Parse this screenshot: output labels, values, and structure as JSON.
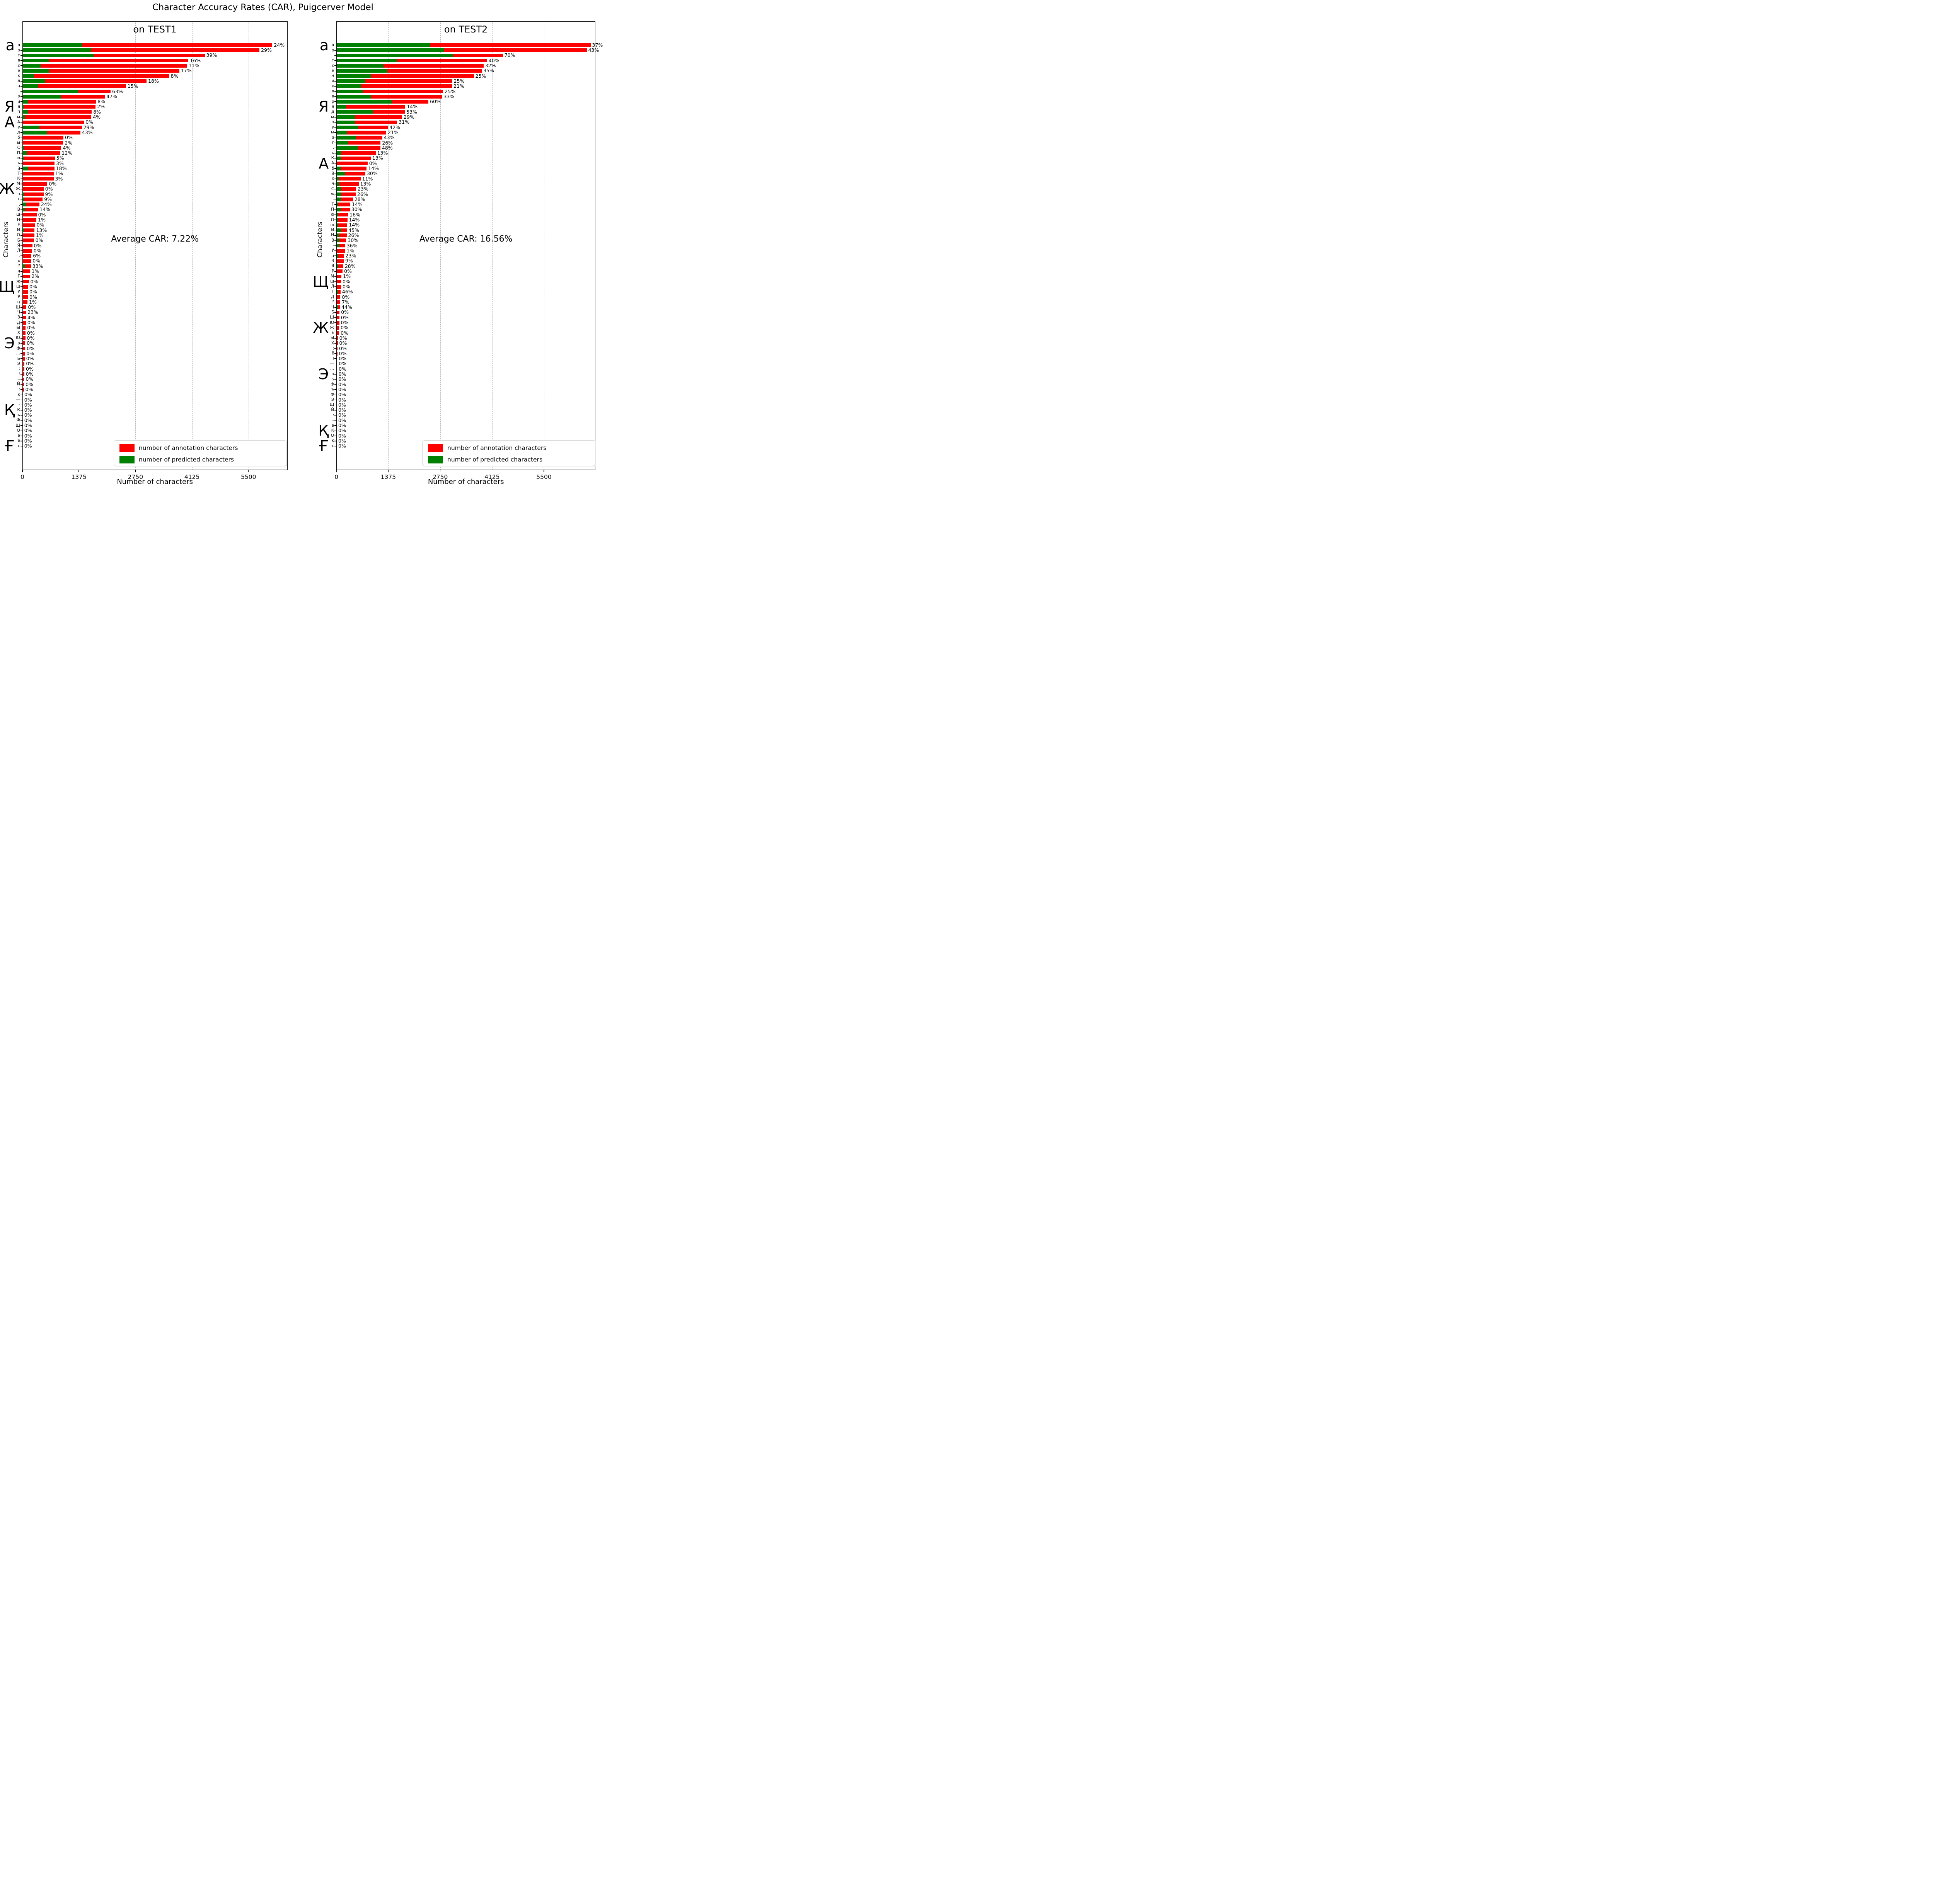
{
  "chart_data": {
    "type": "bar",
    "orientation": "horizontal",
    "title": "Character Accuracy Rates (CAR), Puigcerver Model",
    "legend": {
      "annotation_label": "number of annotation characters",
      "predicted_label": "number of predicted characters",
      "position": "lower right"
    },
    "colors": {
      "annotation": "#ff0000",
      "predicted": "#008000",
      "gridline": "#b5b5b5"
    },
    "note": "rows are [character, annotation_count, car_percent]; predicted_count = annotation_count * car_percent / 100",
    "charts": [
      {
        "subtitle": "on TEST1",
        "avg_text": "Average CAR: 7.22%",
        "xlabel": "Number of characters",
        "ylabel": "Characters",
        "xticks": [
          0,
          1375,
          2750,
          4125,
          5500
        ],
        "xlim": [
          0,
          6450
        ],
        "grid": true,
        "rows": [
          [
            "а",
            6079,
            24
          ],
          [
            "о",
            5766,
            29
          ],
          [
            "т",
            4436,
            39
          ],
          [
            "в",
            4038,
            16
          ],
          [
            "с",
            4004,
            11
          ],
          [
            "е",
            3816,
            17
          ],
          [
            "к",
            3570,
            8
          ],
          [
            "л",
            3020,
            18
          ],
          [
            "н",
            2518,
            15
          ],
          [
            " ",
            2145,
            63
          ],
          [
            "р",
            2007,
            47
          ],
          [
            "и",
            1790,
            8
          ],
          [
            "я",
            1780,
            2
          ],
          [
            "п",
            1686,
            8
          ],
          [
            "м",
            1677,
            4
          ],
          [
            "А",
            1498,
            0
          ],
          [
            "у",
            1445,
            29
          ],
          [
            "д",
            1411,
            43
          ],
          [
            "б",
            999,
            0
          ],
          [
            "ы",
            991,
            2
          ],
          [
            "С",
            946,
            4
          ],
          [
            "П",
            917,
            12
          ],
          [
            "ю",
            789,
            5
          ],
          [
            "ь",
            782,
            3
          ],
          [
            "й",
            779,
            18
          ],
          [
            "Т",
            762,
            1
          ],
          [
            "К",
            758,
            3
          ],
          [
            "М",
            606,
            0
          ],
          [
            "Ж",
            516,
            0
          ],
          [
            "з",
            514,
            9
          ],
          [
            "г",
            492,
            9
          ],
          [
            ",",
            415,
            24
          ],
          [
            "В",
            381,
            14
          ],
          [
            "ш",
            345,
            0
          ],
          [
            "Н",
            340,
            1
          ],
          [
            "Е",
            306,
            0
          ],
          [
            "И",
            297,
            13
          ],
          [
            "О",
            292,
            1
          ],
          [
            "Б",
            280,
            0
          ],
          [
            "Я",
            241,
            0
          ],
          [
            "Л",
            234,
            0
          ],
          [
            ".",
            220,
            6
          ],
          [
            "х",
            210,
            0
          ],
          [
            "?",
            205,
            33
          ],
          [
            "ч",
            186,
            1
          ],
          [
            "Г",
            183,
            2
          ],
          [
            "ж",
            157,
            0
          ],
          [
            "щ",
            133,
            0
          ],
          [
            "У",
            133,
            0
          ],
          [
            "Р",
            133,
            0
          ],
          [
            "ц",
            123,
            1
          ],
          [
            "Ш",
            99,
            0
          ],
          [
            "Ч",
            87,
            23
          ],
          [
            "З",
            84,
            4
          ],
          [
            "Д",
            84,
            0
          ],
          [
            "Ы",
            80,
            0
          ],
          [
            "Х",
            75,
            0
          ],
          [
            "Ю",
            72,
            0
          ],
          [
            "э",
            68,
            0
          ],
          [
            "ф",
            68,
            0
          ],
          [
            "…",
            60,
            0
          ],
          [
            "Ь",
            55,
            0
          ],
          [
            "Э",
            52,
            0
          ],
          [
            ";",
            48,
            0
          ],
          [
            "!",
            45,
            0
          ],
          [
            "–",
            42,
            0
          ],
          [
            "Й",
            40,
            0
          ],
          [
            ":",
            35,
            0
          ],
          [
            "қ",
            10,
            0
          ],
          [
            "—",
            8,
            0
          ],
          [
            "-",
            6,
            0
          ],
          [
            "Қ",
            5,
            0
          ],
          [
            "ъ",
            4,
            0
          ],
          [
            "Ф",
            4,
            0
          ],
          [
            "Щ",
            3,
            0
          ],
          [
            "Ө",
            3,
            0
          ],
          [
            "ө",
            2,
            0
          ],
          [
            "ё",
            2,
            0
          ],
          [
            "ғ",
            1,
            0
          ]
        ],
        "big_letters": [
          [
            "а",
            1
          ],
          [
            "Я",
            13
          ],
          [
            "А",
            16
          ],
          [
            "Ж",
            29
          ],
          [
            "Щ",
            48
          ],
          [
            "Э",
            59
          ],
          [
            "Қ",
            72
          ],
          [
            "Ғ",
            79
          ]
        ]
      },
      {
        "subtitle": "on TEST2",
        "avg_text": "Average CAR: 16.56%",
        "xlabel": "Number of characters",
        "ylabel": "Characters",
        "xticks": [
          0,
          1375,
          2750,
          4125,
          5500
        ],
        "xlim": [
          0,
          6860
        ],
        "grid": true,
        "rows": [
          [
            "а",
            6735,
            37
          ],
          [
            "о",
            6633,
            43
          ],
          [
            " ",
            4411,
            70
          ],
          [
            "т",
            3993,
            40
          ],
          [
            "с",
            3899,
            32
          ],
          [
            "е",
            3852,
            35
          ],
          [
            "н",
            3642,
            25
          ],
          [
            "и",
            3067,
            25
          ],
          [
            "к",
            3062,
            21
          ],
          [
            "л",
            2829,
            25
          ],
          [
            "в",
            2800,
            33
          ],
          [
            "р",
            2438,
            60
          ],
          [
            "я",
            1824,
            14
          ],
          [
            "д",
            1813,
            53
          ],
          [
            "м",
            1740,
            29
          ],
          [
            "п",
            1609,
            31
          ],
          [
            "у",
            1364,
            42
          ],
          [
            "ы",
            1320,
            21
          ],
          [
            "з",
            1215,
            43
          ],
          [
            "г",
            1170,
            26
          ],
          [
            ",",
            1165,
            48
          ],
          [
            "ь",
            1039,
            13
          ],
          [
            "К",
            910,
            13
          ],
          [
            "А",
            826,
            0
          ],
          [
            "б",
            800,
            14
          ],
          [
            "й",
            766,
            30
          ],
          [
            "х",
            640,
            11
          ],
          [
            "ч",
            588,
            13
          ],
          [
            "С",
            520,
            23
          ],
          [
            "ж",
            509,
            26
          ],
          [
            ".",
            436,
            28
          ],
          [
            "Т",
            367,
            14
          ],
          [
            "П",
            354,
            30
          ],
          [
            "ю",
            307,
            16
          ],
          [
            "О",
            291,
            14
          ],
          [
            "ш",
            289,
            14
          ],
          [
            "И",
            278,
            45
          ],
          [
            "Н",
            270,
            26
          ],
          [
            "В",
            257,
            30
          ],
          [
            "-",
            231,
            36
          ],
          [
            "У",
            228,
            1
          ],
          [
            "ц",
            198,
            23
          ],
          [
            "З",
            193,
            9
          ],
          [
            "Я",
            181,
            28
          ],
          [
            "Р",
            163,
            0
          ],
          [
            "М",
            134,
            1
          ],
          [
            "щ",
            121,
            0
          ],
          [
            "Л",
            121,
            0
          ],
          [
            "Г",
            110,
            46
          ],
          [
            "Д",
            105,
            0
          ],
          [
            "?",
            100,
            7
          ],
          [
            "Ч",
            92,
            44
          ],
          [
            "Б",
            82,
            0
          ],
          [
            "Ш",
            79,
            0
          ],
          [
            "Ю",
            76,
            0
          ],
          [
            "Ж",
            71,
            0
          ],
          [
            "Е",
            71,
            0
          ],
          [
            "Ы",
            37,
            0
          ],
          [
            "Х",
            34,
            0
          ],
          [
            ";",
            29,
            0
          ],
          [
            "ё",
            25,
            0
          ],
          [
            "!",
            22,
            0
          ],
          [
            "—",
            20,
            0
          ],
          [
            "…",
            18,
            0
          ],
          [
            "э",
            15,
            0
          ],
          [
            "Ь",
            12,
            0
          ],
          [
            "ф",
            8,
            0
          ],
          [
            "ъ",
            6,
            0
          ],
          [
            "Ф",
            5,
            0
          ],
          [
            "Э",
            4,
            0
          ],
          [
            "Щ",
            3,
            0
          ],
          [
            "Й",
            3,
            0
          ],
          [
            ":",
            2,
            0
          ],
          [
            "–",
            2,
            0
          ],
          [
            "ө",
            2,
            0
          ],
          [
            "Қ",
            1,
            0
          ],
          [
            "Ө",
            1,
            0
          ],
          [
            "қ",
            1,
            0
          ],
          [
            "ғ",
            1,
            0
          ]
        ],
        "big_letters": [
          [
            "а",
            1
          ],
          [
            "Я",
            13
          ],
          [
            "А",
            24
          ],
          [
            "Щ",
            47
          ],
          [
            "Ж",
            56
          ],
          [
            "Э",
            65
          ],
          [
            "Қ",
            76
          ],
          [
            "Ғ",
            79
          ]
        ]
      }
    ]
  }
}
